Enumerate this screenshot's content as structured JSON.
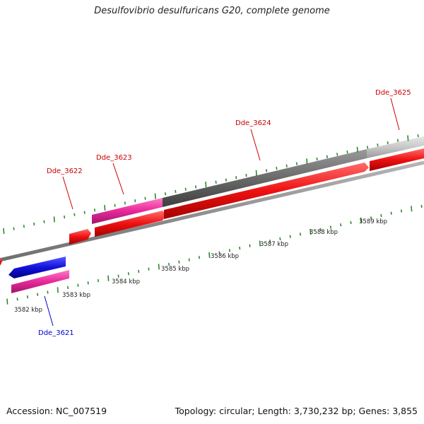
{
  "title": "Desulfovibrio desulfuricans G20, complete genome",
  "footer": {
    "accession": "Accession: NC_007519",
    "topology": "Topology: circular; Length: 3,730,232 bp; Genes: 3,855"
  },
  "colors": {
    "cds": "#ee1111",
    "rna_pink": "#e8289a",
    "blue": "#1111dd",
    "gray_dark": "#6a6a6a",
    "gray_light": "#c8c8c8",
    "backbone": "#8c8c8c",
    "ticks": "#2b8a2b",
    "label_red": "#cc0000",
    "label_blue": "#0000cc"
  },
  "gene_labels": [
    {
      "id": "Dde_3621",
      "text": "Dde_3621",
      "color": "blue"
    },
    {
      "id": "Dde_3622",
      "text": "Dde_3622",
      "color": "red"
    },
    {
      "id": "Dde_3623",
      "text": "Dde_3623",
      "color": "red"
    },
    {
      "id": "Dde_3624",
      "text": "Dde_3624",
      "color": "red"
    },
    {
      "id": "Dde_3625",
      "text": "Dde_3625",
      "color": "red"
    }
  ],
  "kbp_labels": [
    "3582 kbp",
    "3583 kbp",
    "3584 kbp",
    "3585 kbp",
    "3586 kbp",
    "3587 kbp",
    "3588 kbp",
    "3589 kbp"
  ]
}
